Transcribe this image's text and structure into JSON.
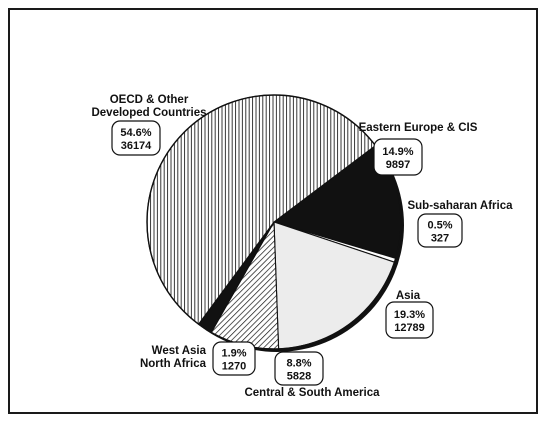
{
  "chart_data": {
    "type": "pie",
    "title": "",
    "slices": [
      {
        "label": [
          "Eastern Europe & CIS"
        ],
        "percent": "14.9%",
        "value": 9897,
        "fill": "black"
      },
      {
        "label": [
          "Sub-saharan Africa"
        ],
        "percent": "0.5%",
        "value": 327,
        "fill": "white"
      },
      {
        "label": [
          "Asia"
        ],
        "percent": "19.3%",
        "value": 12789,
        "fill": "light-gray"
      },
      {
        "label": [
          "Central & South America"
        ],
        "percent": "8.8%",
        "value": 5828,
        "fill": "crosshatch"
      },
      {
        "label": [
          "West Asia",
          "North Africa"
        ],
        "percent": "1.9%",
        "value": 1270,
        "fill": "black"
      },
      {
        "label": [
          "OECD & Other",
          "Developed Countries"
        ],
        "percent": "54.6%",
        "value": 36174,
        "fill": "vertical-stripes"
      }
    ],
    "colors": {
      "dark": "#111111",
      "light_gray": "#ececec",
      "background": "#ffffff"
    }
  }
}
